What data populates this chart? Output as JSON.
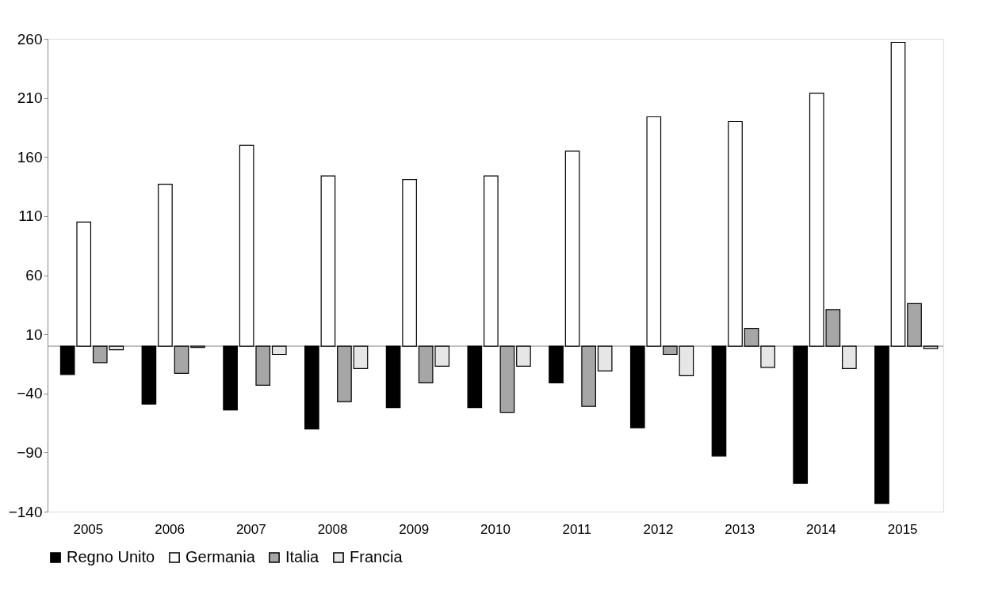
{
  "chart_data": {
    "type": "bar",
    "categories": [
      "2005",
      "2006",
      "2007",
      "2008",
      "2009",
      "2010",
      "2011",
      "2012",
      "2013",
      "2014",
      "2015"
    ],
    "series": [
      {
        "name": "Regno Unito",
        "color": "#000000",
        "values": [
          -24,
          -49,
          -54,
          -70,
          -52,
          -52,
          -31,
          -69,
          -93,
          -116,
          -133
        ]
      },
      {
        "name": "Germania",
        "color": "#ffffff",
        "values": [
          105,
          137,
          170,
          144,
          141,
          144,
          165,
          194,
          190,
          214,
          257
        ]
      },
      {
        "name": "Italia",
        "color": "#a6a6a6",
        "values": [
          -14,
          -23,
          -33,
          -47,
          -31,
          -56,
          -51,
          -7,
          15,
          31,
          36
        ]
      },
      {
        "name": "Francia",
        "color": "#e6e6e6",
        "values": [
          -3,
          -1,
          -7,
          -19,
          -17,
          -17,
          -21,
          -25,
          -18,
          -19,
          -2
        ]
      }
    ],
    "ylim": [
      -140,
      260
    ],
    "yticks": [
      -140,
      -90,
      -40,
      10,
      60,
      110,
      160,
      210,
      260
    ],
    "grid": false,
    "legend": "bottom"
  }
}
